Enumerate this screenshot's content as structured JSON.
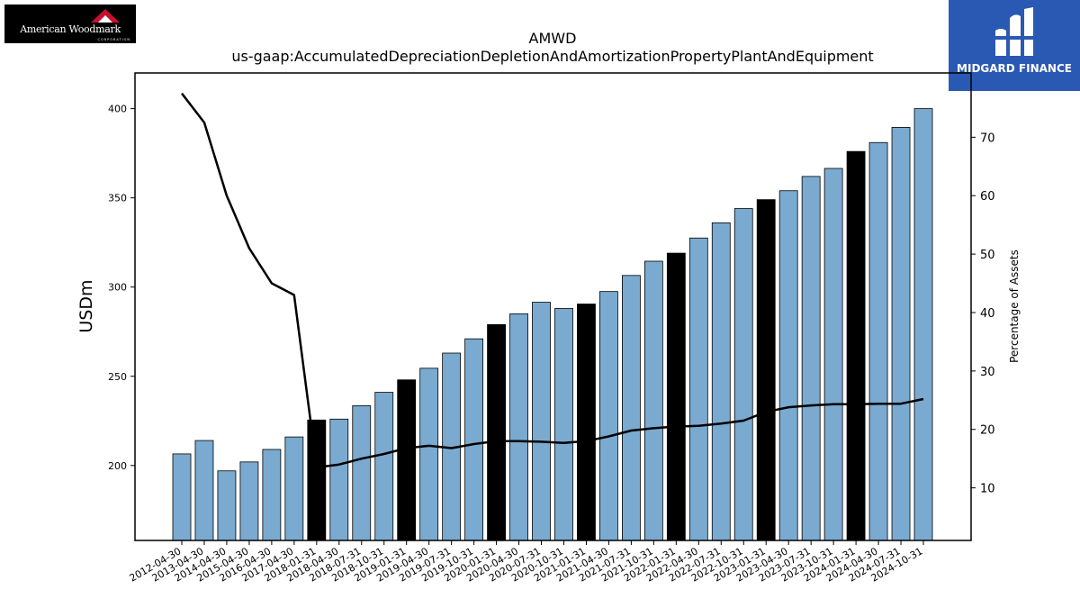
{
  "logos": {
    "left": {
      "name": "American Woodmark",
      "sub": "CORPORATION"
    },
    "right": {
      "name": "MIDGARD FINANCE"
    }
  },
  "chart_data": {
    "type": "bar",
    "title": "AMWD",
    "subtitle": "us-gaap:AccumulatedDepreciationDepletionAndAmortizationPropertyPlantAndEquipment",
    "ylabel": "USDm",
    "y2label": "Percentage of Assets",
    "ylim": [
      158,
      420
    ],
    "y2lim": [
      1,
      81
    ],
    "yticks": [
      200,
      250,
      300,
      350,
      400
    ],
    "y2ticks": [
      10,
      20,
      30,
      40,
      50,
      60,
      70
    ],
    "categories": [
      "2012-04-30",
      "2013-04-30",
      "2014-04-30",
      "2015-04-30",
      "2016-04-30",
      "2017-04-30",
      "2018-01-31",
      "2018-04-30",
      "2018-07-31",
      "2018-10-31",
      "2019-01-31",
      "2019-04-30",
      "2019-07-31",
      "2019-10-31",
      "2020-01-31",
      "2020-04-30",
      "2020-07-31",
      "2020-10-31",
      "2021-01-31",
      "2021-04-30",
      "2021-07-31",
      "2021-10-31",
      "2022-01-31",
      "2022-04-30",
      "2022-07-31",
      "2022-10-31",
      "2023-01-31",
      "2023-04-30",
      "2023-07-31",
      "2023-10-31",
      "2024-01-31",
      "2024-04-30",
      "2024-07-31",
      "2024-10-31"
    ],
    "series": [
      {
        "type": "bar",
        "axis": "left",
        "values": [
          206.5,
          214,
          197,
          202,
          209,
          216,
          225.5,
          226,
          233.5,
          241,
          248,
          254.5,
          263,
          271,
          279,
          285,
          291.5,
          288,
          290.5,
          297.5,
          306.5,
          314.5,
          319,
          327.5,
          336,
          344,
          349,
          354,
          362,
          366.5,
          376,
          381,
          389.5,
          400
        ],
        "highlight": [
          false,
          false,
          false,
          false,
          false,
          false,
          true,
          false,
          false,
          false,
          true,
          false,
          false,
          false,
          true,
          false,
          false,
          false,
          true,
          false,
          false,
          false,
          true,
          false,
          false,
          false,
          true,
          false,
          false,
          false,
          true,
          false,
          false,
          false
        ]
      },
      {
        "type": "line",
        "axis": "right",
        "values": [
          77.5,
          72.5,
          60,
          51,
          45,
          43,
          13.5,
          14,
          15,
          15.8,
          16.8,
          17.2,
          16.8,
          17.5,
          18,
          18,
          17.9,
          17.7,
          18,
          18.8,
          19.8,
          20.2,
          20.5,
          20.6,
          21,
          21.5,
          23,
          23.8,
          24.1,
          24.3,
          24.3,
          24.4,
          24.4,
          25.2
        ]
      }
    ],
    "colors": {
      "bar": "#7aaad0",
      "bar_highlight": "#000000",
      "line": "#000000"
    },
    "grid": false
  }
}
